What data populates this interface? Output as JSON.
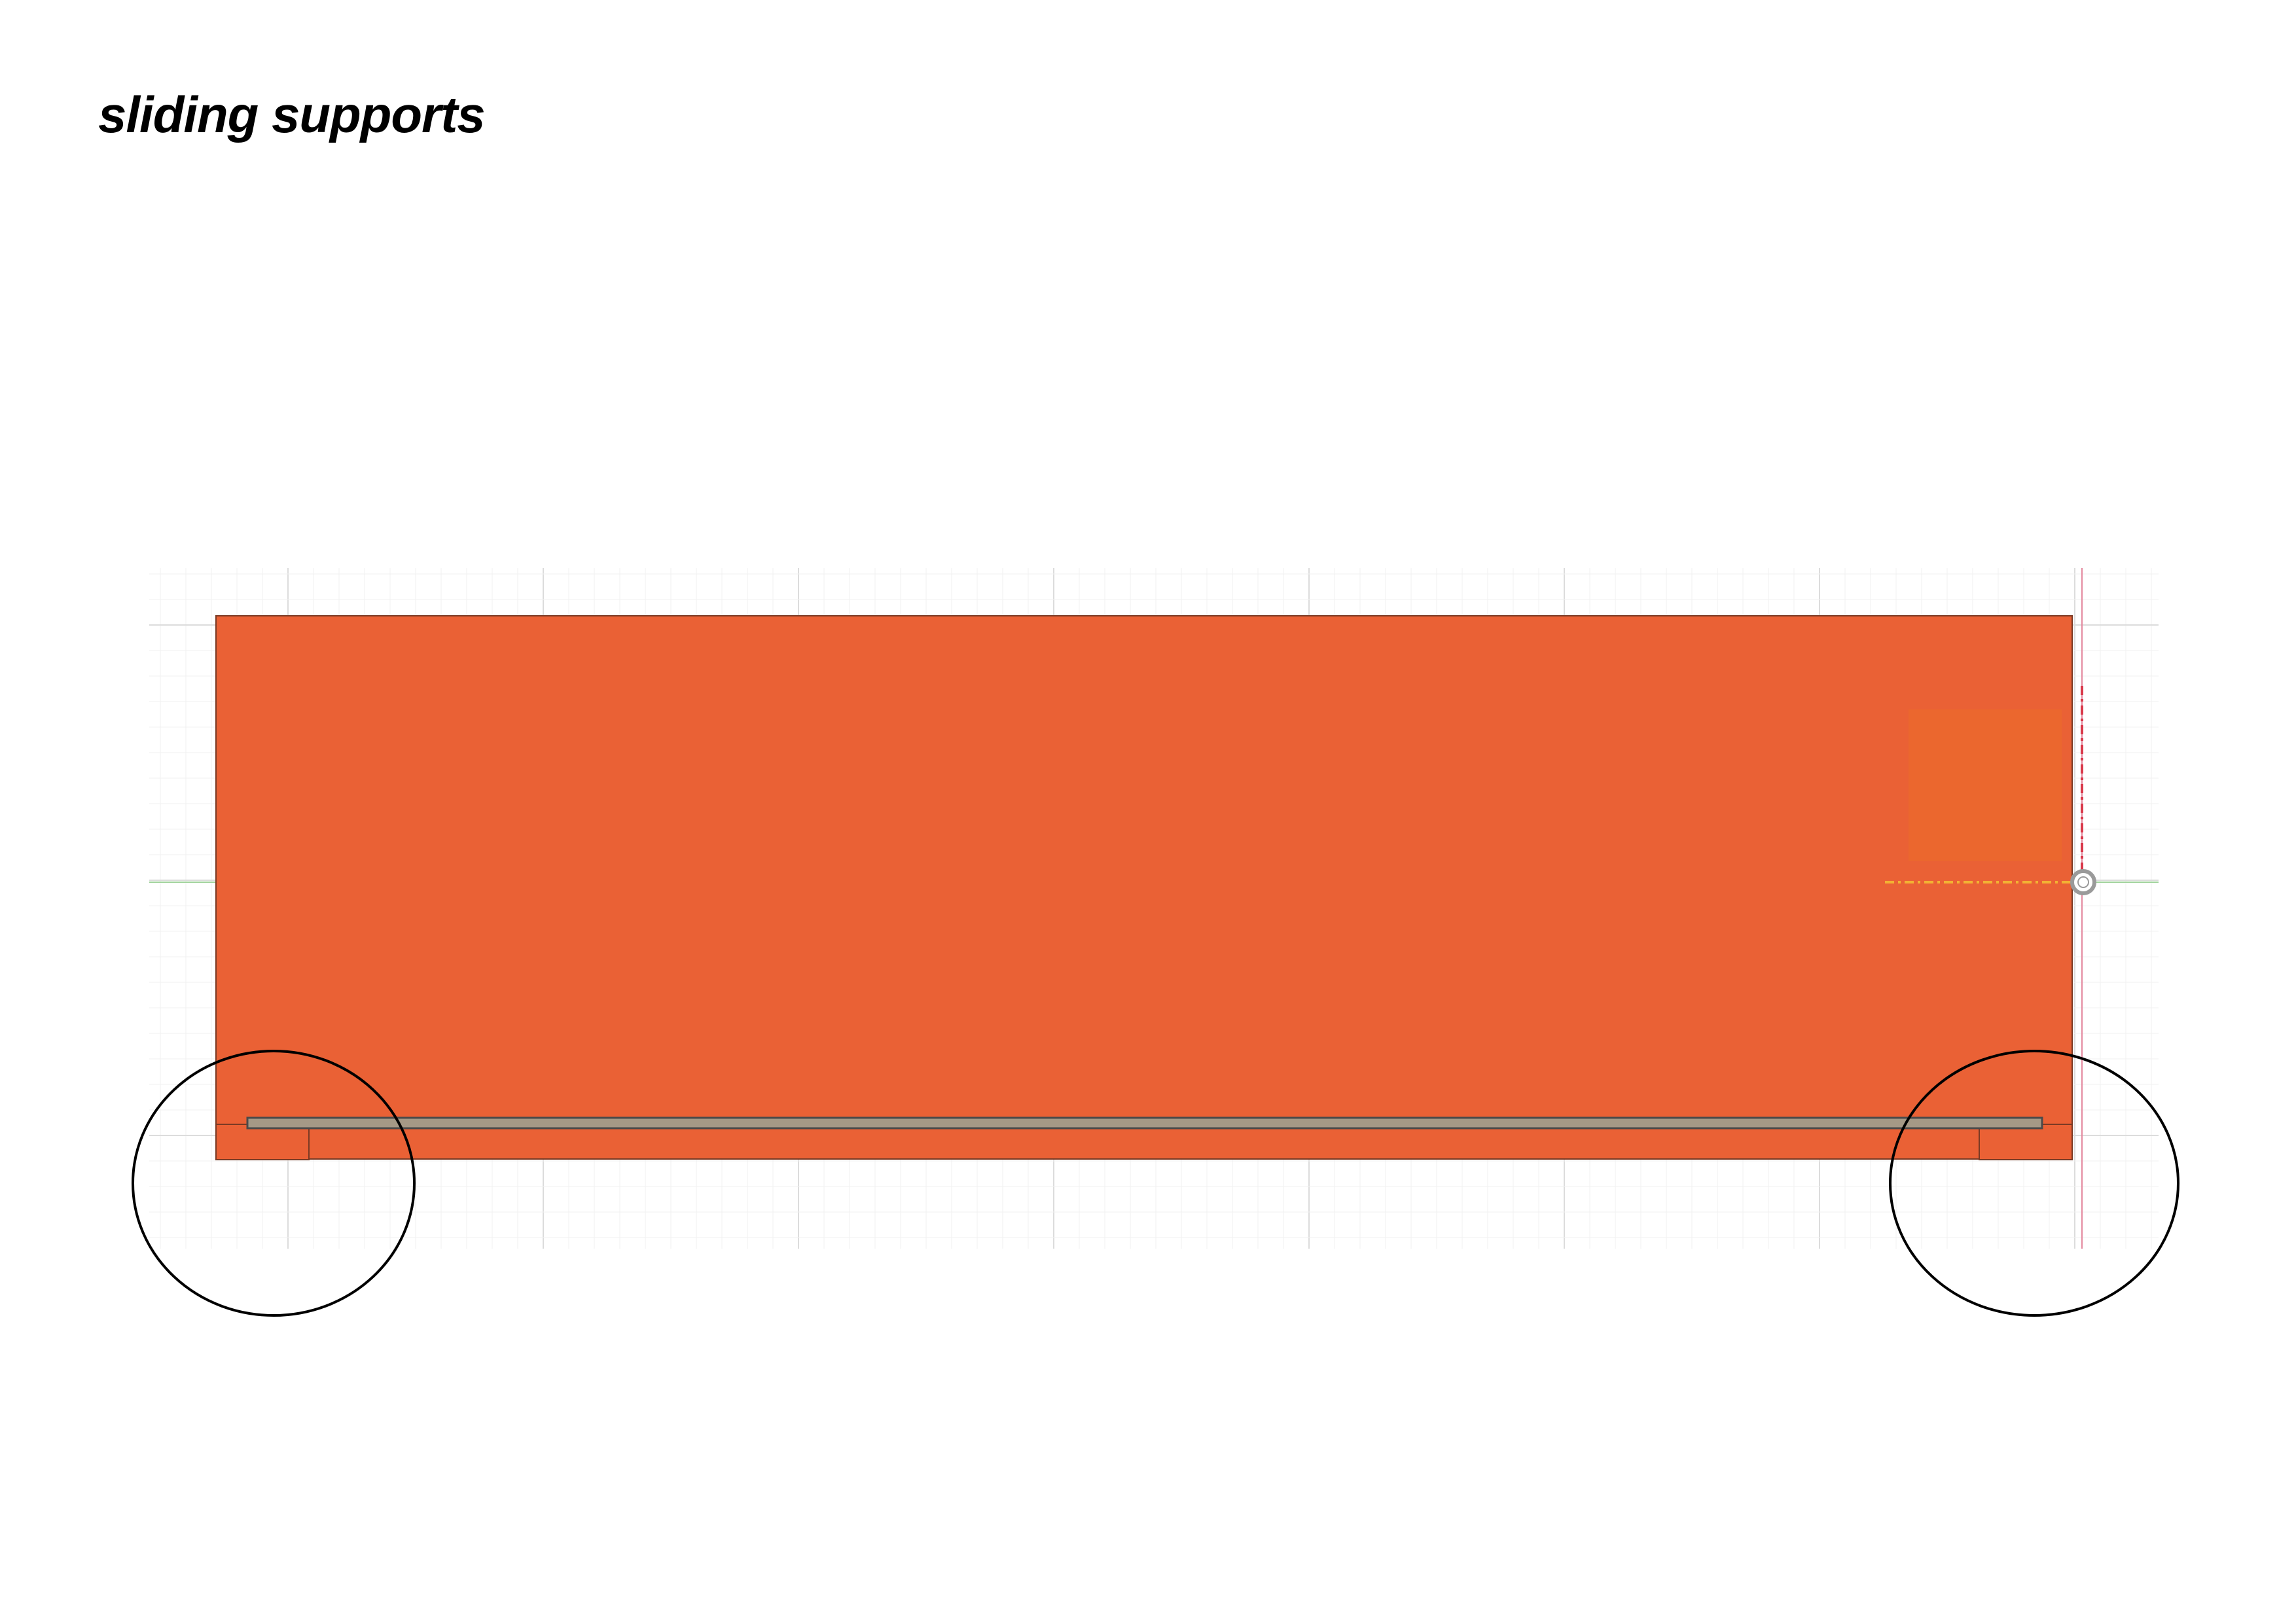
{
  "title": "sliding supports",
  "colors": {
    "background": "#ffffff",
    "panel": "#ea6135",
    "panel_highlight": "#eb672e",
    "panel_outline": "#7a3a24",
    "rod": "#a59986",
    "rod_outline": "#4a4a4a",
    "grid_minor": "#f0f0f0",
    "grid_major": "#dcdcdc",
    "axis_green": "#9fd29a",
    "axis_red": "#e48aa0",
    "axis_dash_red": "#d9384a",
    "axis_dash_yellow": "#f2b233",
    "callout_circle": "#000000",
    "origin_marker": "#9a9a9a"
  },
  "callouts": [
    {
      "name": "left-support-callout"
    },
    {
      "name": "right-support-callout"
    }
  ]
}
